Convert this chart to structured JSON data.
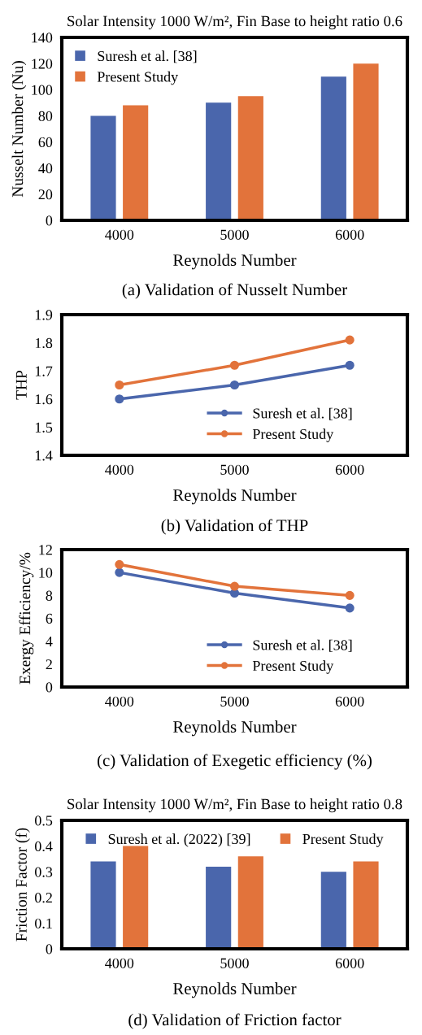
{
  "chart_data": [
    {
      "type": "bar",
      "title": "Solar Intensity 1000 W/m², Fin Base to height ratio 0.6",
      "xlabel": "Reynolds Number",
      "ylabel": "Nusselt Number (Nu)",
      "categories": [
        "4000",
        "5000",
        "6000"
      ],
      "series": [
        {
          "name": "Suresh et al. [38]",
          "color": "#4a66ac",
          "values": [
            80,
            90,
            110
          ]
        },
        {
          "name": "Present Study",
          "color": "#e2733b",
          "values": [
            88,
            95,
            120
          ]
        }
      ],
      "ylim": [
        0,
        140
      ],
      "yticks": [
        0,
        20,
        40,
        60,
        80,
        100,
        120,
        140
      ],
      "legend": "top left",
      "annotations": [
        "(a) Validation of Nusselt Number"
      ]
    },
    {
      "type": "line",
      "xlabel": "Reynolds Number",
      "ylabel": "THP",
      "categories": [
        "4000",
        "5000",
        "6000"
      ],
      "series": [
        {
          "name": "Suresh et al. [38]",
          "color": "#4a66ac",
          "values": [
            1.6,
            1.65,
            1.72
          ]
        },
        {
          "name": "Present Study",
          "color": "#e2733b",
          "values": [
            1.65,
            1.72,
            1.81
          ]
        }
      ],
      "ylim": [
        1.4,
        1.9
      ],
      "yticks": [
        1.4,
        1.5,
        1.6,
        1.7,
        1.8,
        1.9
      ],
      "legend": "bottom right",
      "marker": "circle",
      "line_style": "solid",
      "annotations": [
        "(b) Validation of THP"
      ]
    },
    {
      "type": "line",
      "xlabel": "Reynolds Number",
      "ylabel": "Exergy Efficiency/%",
      "categories": [
        "4000",
        "5000",
        "6000"
      ],
      "series": [
        {
          "name": "Suresh et al. [38]",
          "color": "#4a66ac",
          "values": [
            10.0,
            8.2,
            6.9
          ]
        },
        {
          "name": "Present Study",
          "color": "#e2733b",
          "values": [
            10.7,
            8.8,
            8.0
          ]
        }
      ],
      "ylim": [
        0,
        12
      ],
      "yticks": [
        0,
        2,
        4,
        6,
        8,
        10,
        12
      ],
      "legend": "bottom right",
      "marker": "circle",
      "line_style": "solid",
      "annotations": [
        "(c) Validation of Exegetic efficiency (%)"
      ]
    },
    {
      "type": "bar",
      "title": "Solar Intensity 1000 W/m², Fin Base to height ratio 0.8",
      "xlabel": "Reynolds Number",
      "ylabel": "Friction Factor (f)",
      "categories": [
        "4000",
        "5000",
        "6000"
      ],
      "series": [
        {
          "name": "Suresh et al. (2022) [39]",
          "color": "#4a66ac",
          "values": [
            0.34,
            0.32,
            0.3
          ]
        },
        {
          "name": "Present Study",
          "color": "#e2733b",
          "values": [
            0.4,
            0.36,
            0.34
          ]
        }
      ],
      "ylim": [
        0,
        0.5
      ],
      "yticks": [
        0,
        0.1,
        0.2,
        0.3,
        0.4,
        0.5
      ],
      "legend": "top",
      "annotations": [
        "(d) Validation of Friction factor"
      ]
    }
  ]
}
